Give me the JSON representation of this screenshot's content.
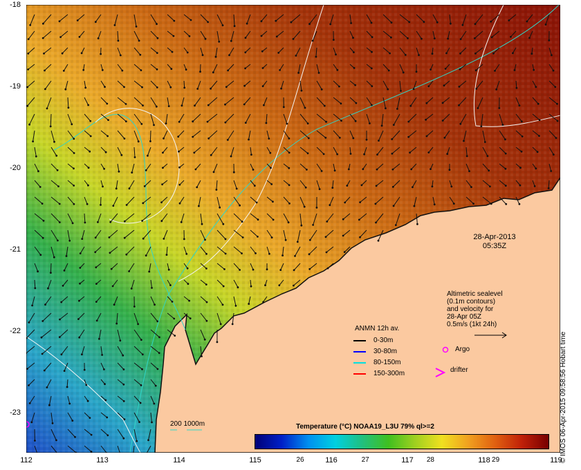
{
  "map": {
    "y_ticks": [
      "-18",
      "-19",
      "-20",
      "-21",
      "-22",
      "-23"
    ],
    "x_ticks": [
      "112",
      "113",
      "114",
      "115",
      "116",
      "117",
      "118",
      "119"
    ],
    "lat_range": [
      -18,
      -23.5
    ],
    "lon_range": [
      112,
      119
    ],
    "colors": {
      "land": "#fbc9a0",
      "coast": "#111111",
      "contour": "#f4f4f4",
      "bathy": "#2fd6c8"
    }
  },
  "timestamp": {
    "date": "28-Apr-2013",
    "time": "05:35Z"
  },
  "altimetry_note": [
    "Altimetric sealevel",
    "(0.1m contours)",
    "and velocity for",
    "28-Apr 05Z",
    "0.5m/s (1kt 24h)"
  ],
  "anmn_legend": {
    "title": "ANMN 12h av.",
    "items": [
      {
        "label": "0-30m",
        "color": "#000000"
      },
      {
        "label": "30-80m",
        "color": "#0000ff"
      },
      {
        "label": "80-150m",
        "color": "#00e0e0"
      },
      {
        "label": "150-300m",
        "color": "#ff0000"
      }
    ]
  },
  "markers": {
    "argo": "Argo",
    "drifter": "drifter",
    "argo_color": "#ff00ff",
    "drifter_color": "#ff00ff"
  },
  "bathy_legend": {
    "label": "200  1000m"
  },
  "colorbar": {
    "title": "Temperature (°C) NOAA19_L3U 79% ql>=2",
    "ticks": [
      "26",
      "27",
      "28",
      "29"
    ],
    "range": [
      25.3,
      29.8
    ]
  },
  "credit": "© IMOS 06-Apr-2015 09:58:56 Hobart time"
}
